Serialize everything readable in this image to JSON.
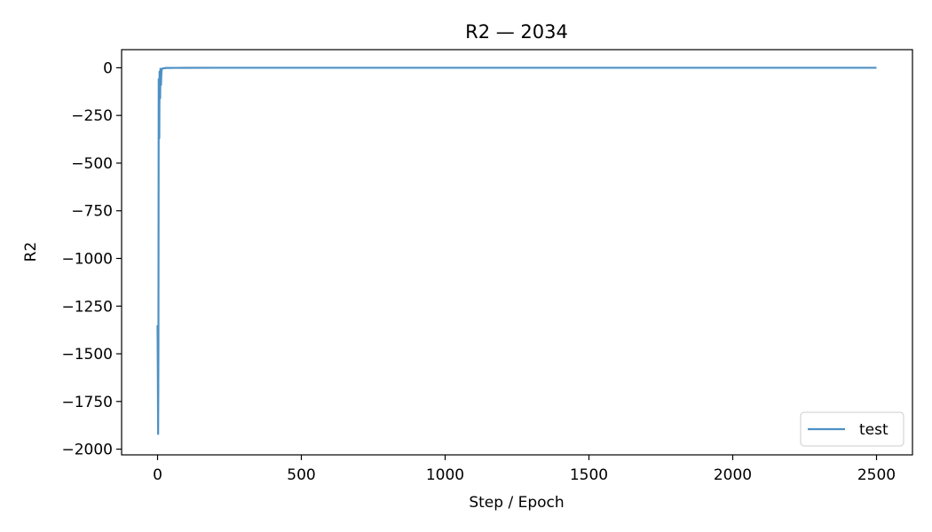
{
  "chart_data": {
    "type": "line",
    "title": "R2 — 2034",
    "xlabel": "Step / Epoch",
    "ylabel": "R2",
    "xlim": [
      -125,
      2625
    ],
    "ylim": [
      -2030,
      95
    ],
    "xticks": [
      0,
      500,
      1000,
      1500,
      2000,
      2500
    ],
    "xtick_labels": [
      "0",
      "500",
      "1000",
      "1500",
      "2000",
      "2500"
    ],
    "yticks": [
      0,
      -250,
      -500,
      -750,
      -1000,
      -1250,
      -1500,
      -1750,
      -2000
    ],
    "ytick_labels": [
      "0",
      "−250",
      "−500",
      "−750",
      "−1000",
      "−1250",
      "−1500",
      "−1750",
      "−2000"
    ],
    "grid": false,
    "legend": {
      "placement": "lower-right",
      "entries": [
        "test"
      ]
    },
    "colors": {
      "test": "#4c90c4"
    },
    "series": [
      {
        "name": "test",
        "x": [
          0,
          1,
          2,
          3,
          4,
          5,
          6,
          7,
          8,
          9,
          10,
          11,
          12,
          13,
          14,
          15,
          16,
          18,
          20,
          25,
          30,
          40,
          60,
          100,
          200,
          500,
          1000,
          1500,
          2000,
          2500
        ],
        "y": [
          -1350,
          -1600,
          -1920,
          -1500,
          -60,
          -80,
          -370,
          -20,
          -120,
          -160,
          -5,
          -30,
          -90,
          -40,
          -15,
          -8,
          -5,
          -4,
          -3,
          -2,
          -1,
          -1,
          -0.5,
          -0.2,
          -0.1,
          0,
          0,
          0,
          0,
          0
        ]
      }
    ]
  }
}
